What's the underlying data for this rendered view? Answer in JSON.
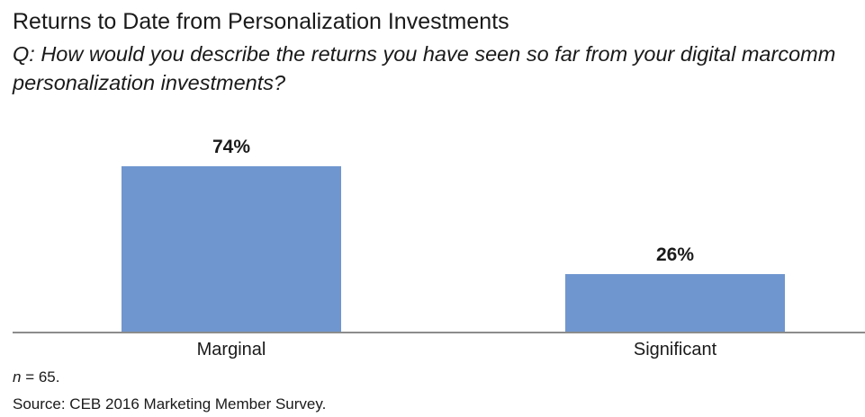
{
  "chart_data": {
    "type": "bar",
    "title": "Returns to Date from Personalization Investments",
    "subtitle": "Q: How would you describe the returns you have seen so far from your digital marcomm personalization investments?",
    "categories": [
      "Marginal",
      "Significant"
    ],
    "values": [
      74,
      26
    ],
    "data_labels": [
      "74%",
      "26%"
    ],
    "xlabel": "",
    "ylabel": "",
    "ylim": [
      0,
      100
    ],
    "grid": false,
    "bar_color": "#6f96cf",
    "axis_color": "#8c8c8c"
  },
  "footnotes": {
    "n_label": "n",
    "n_value": " = 65.",
    "source": "Source: CEB 2016 Marketing Member Survey."
  }
}
